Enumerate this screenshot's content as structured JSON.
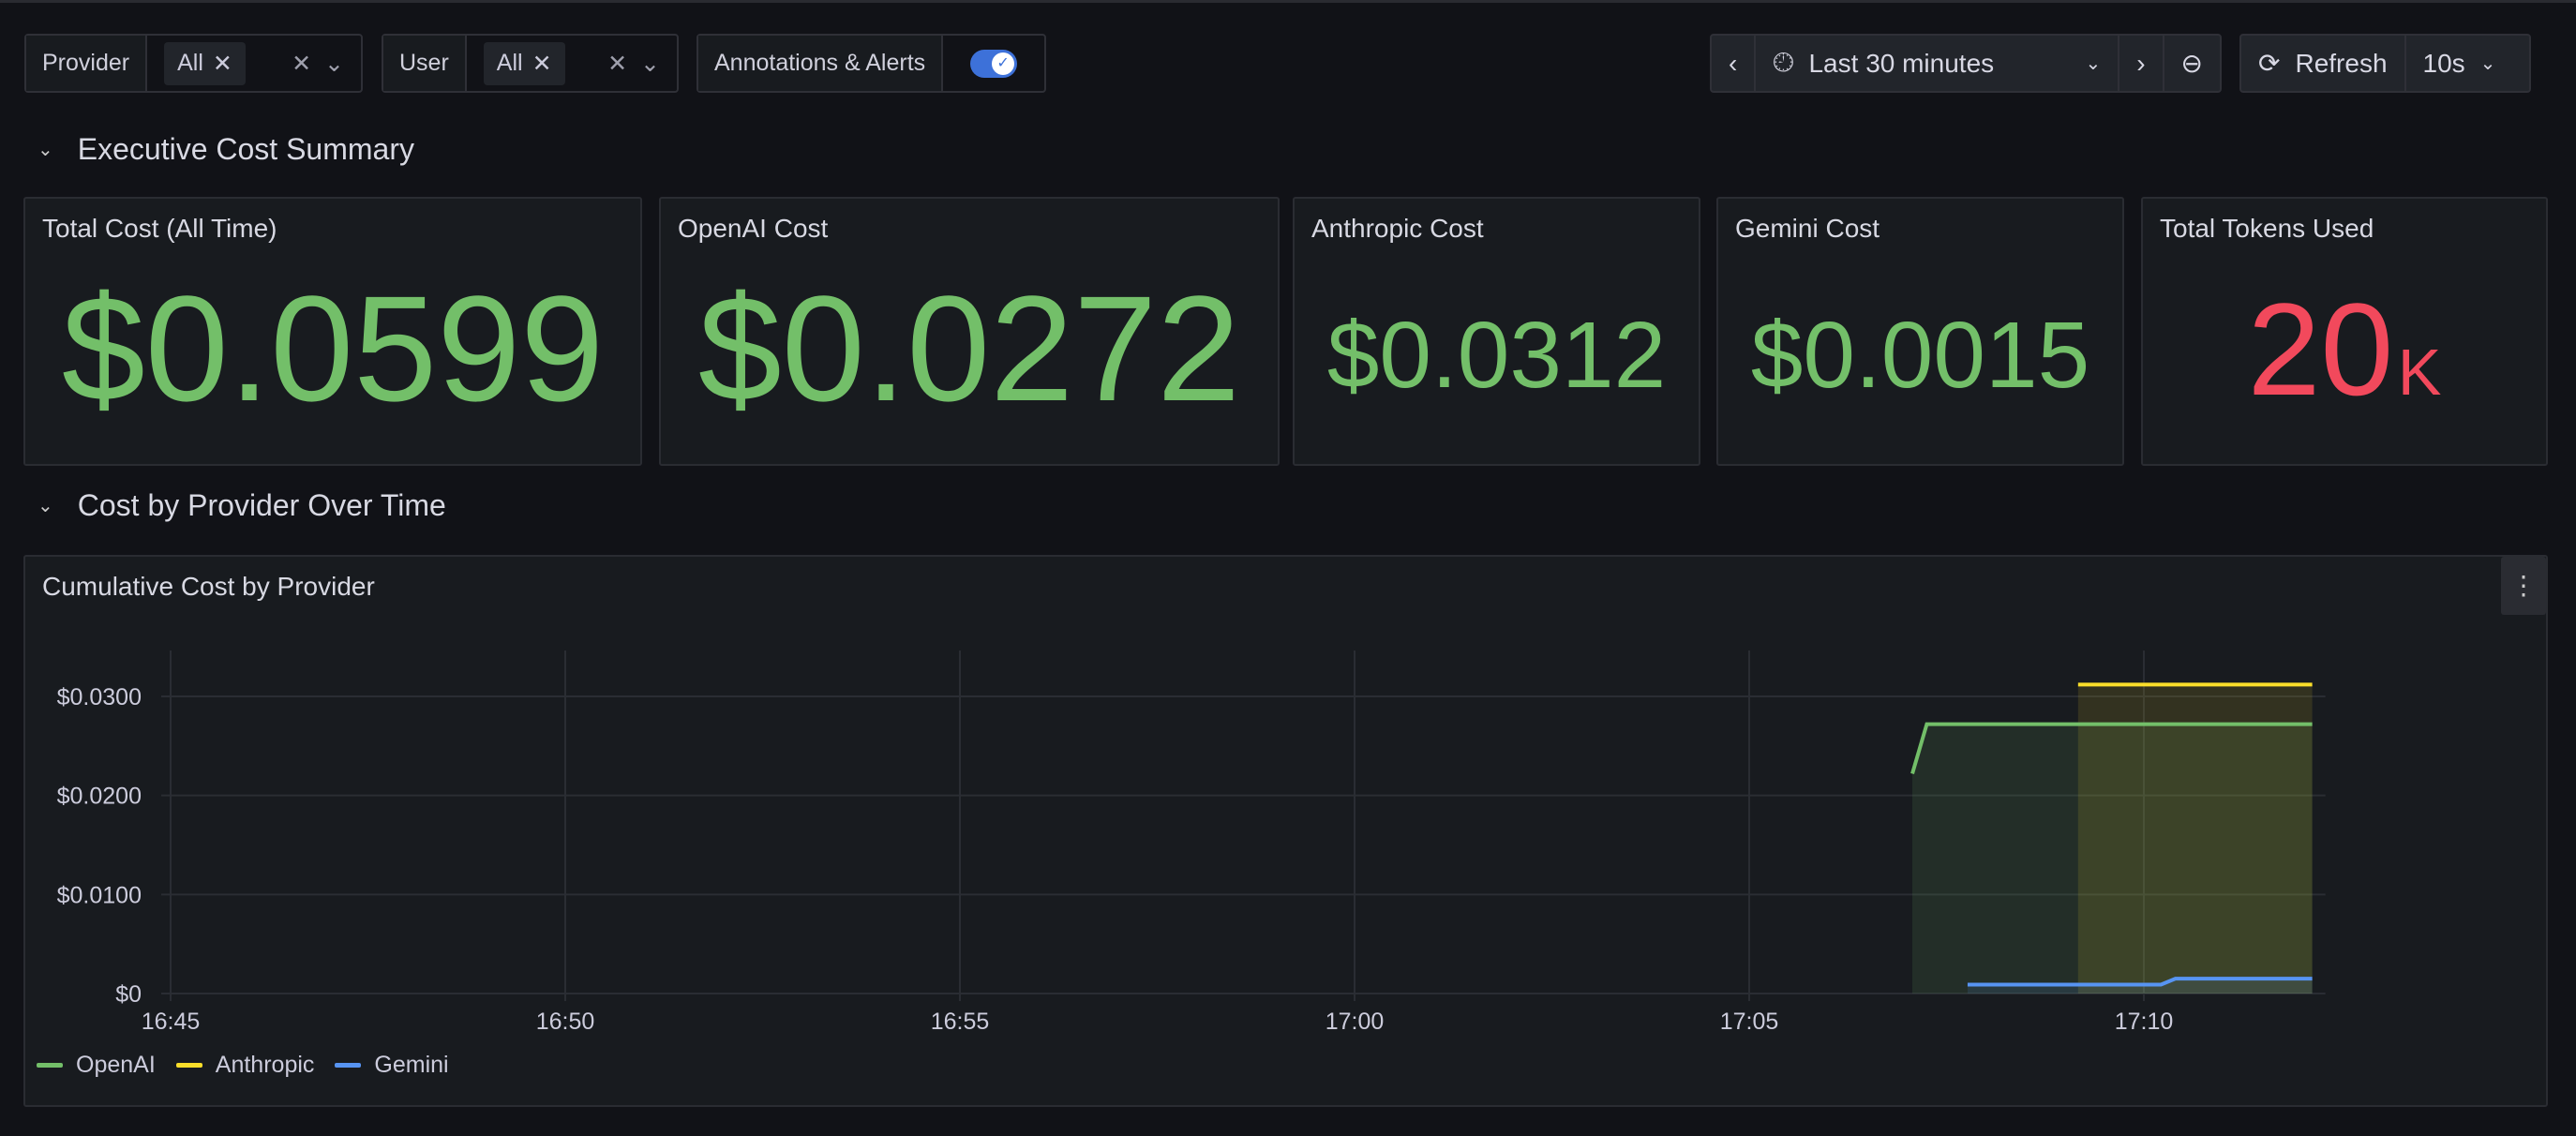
{
  "filters": [
    {
      "label": "Provider",
      "value": "All"
    },
    {
      "label": "User",
      "value": "All"
    }
  ],
  "annotations": {
    "label": "Annotations & Alerts",
    "enabled": true
  },
  "time_picker": {
    "range": "Last 30 minutes"
  },
  "refresh": {
    "label": "Refresh",
    "interval": "10s"
  },
  "rows": [
    {
      "title": "Executive Cost Summary"
    },
    {
      "title": "Cost by Provider Over Time"
    }
  ],
  "stats": [
    {
      "title": "Total Cost (All Time)",
      "value": "$0.0599",
      "color": "#73bf69"
    },
    {
      "title": "OpenAI Cost",
      "value": "$0.0272",
      "color": "#73bf69"
    },
    {
      "title": "Anthropic Cost",
      "value": "$0.0312",
      "color": "#73bf69"
    },
    {
      "title": "Gemini Cost",
      "value": "$0.0015",
      "color": "#73bf69"
    },
    {
      "title": "Total Tokens Used",
      "value": "20",
      "unit": "K",
      "color": "#f2495c"
    }
  ],
  "chart_data": {
    "type": "line",
    "title": "Cumulative Cost by Provider",
    "x_ticks": [
      "16:45",
      "16:50",
      "16:55",
      "17:00",
      "17:05",
      "17:10"
    ],
    "y_ticks": [
      "$0",
      "$0.0100",
      "$0.0200",
      "$0.0300"
    ],
    "ylim": [
      0,
      0.03
    ],
    "xlim": [
      "16:45:00",
      "17:12:18"
    ],
    "grid": true,
    "legend": "bottom-left",
    "series": [
      {
        "name": "OpenAI",
        "color": "#73bf69",
        "points": [
          [
            "17:07:04",
            0.0222
          ],
          [
            "17:07:15",
            0.0272
          ],
          [
            "17:12:08",
            0.0272
          ]
        ]
      },
      {
        "name": "Anthropic",
        "color": "#fade2a",
        "points": [
          [
            "17:09:10",
            0.0312
          ],
          [
            "17:12:08",
            0.0312
          ]
        ]
      },
      {
        "name": "Gemini",
        "color": "#5794f2",
        "points": [
          [
            "17:07:46",
            0.0009
          ],
          [
            "17:10:13",
            0.0009
          ],
          [
            "17:10:24",
            0.0015
          ],
          [
            "17:12:08",
            0.0015
          ]
        ]
      }
    ]
  }
}
